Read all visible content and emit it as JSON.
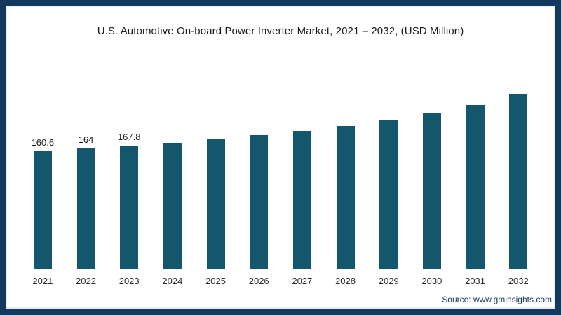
{
  "frame": {
    "border_color": "#133a5c",
    "background": "#ffffff"
  },
  "chart_data": {
    "type": "bar",
    "title": "U.S. Automotive On-board Power Inverter Market, 2021 – 2032, (USD Million)",
    "categories": [
      "2021",
      "2022",
      "2023",
      "2024",
      "2025",
      "2026",
      "2027",
      "2028",
      "2029",
      "2030",
      "2031",
      "2032"
    ],
    "values": [
      160.6,
      164,
      167.8,
      172,
      178,
      183,
      188,
      195,
      203,
      213,
      224,
      238
    ],
    "data_labels": [
      "160.6",
      "164",
      "167.8",
      "",
      "",
      "",
      "",
      "",
      "",
      "",
      "",
      ""
    ],
    "xlabel": "",
    "ylabel": "",
    "ylim": [
      0,
      260
    ],
    "grid": false,
    "legend": "none",
    "bar_color": "#14566b",
    "axis_line_color": "#d9d9d9"
  },
  "footer": {
    "source_label": "Source: www.gminsights.com"
  }
}
